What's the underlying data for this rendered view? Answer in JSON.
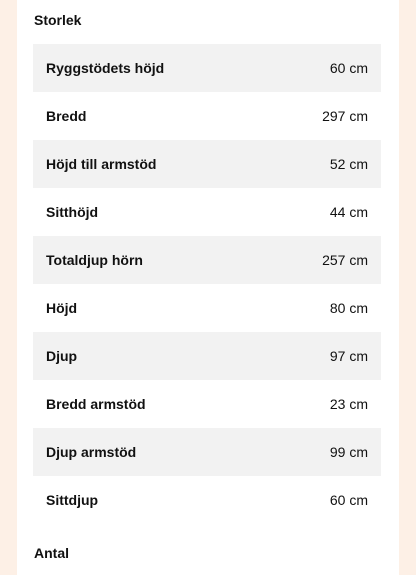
{
  "sections": {
    "size_title": "Storlek",
    "count_title": "Antal"
  },
  "specs": [
    {
      "label": "Ryggstödets höjd",
      "value": "60 cm"
    },
    {
      "label": "Bredd",
      "value": "297 cm"
    },
    {
      "label": "Höjd till armstöd",
      "value": "52 cm"
    },
    {
      "label": "Sitthöjd",
      "value": "44 cm"
    },
    {
      "label": "Totaldjup hörn",
      "value": "257 cm"
    },
    {
      "label": "Höjd",
      "value": "80 cm"
    },
    {
      "label": "Djup",
      "value": "97 cm"
    },
    {
      "label": "Bredd armstöd",
      "value": "23 cm"
    },
    {
      "label": "Djup armstöd",
      "value": "99 cm"
    },
    {
      "label": "Sittdjup",
      "value": "60 cm"
    }
  ]
}
